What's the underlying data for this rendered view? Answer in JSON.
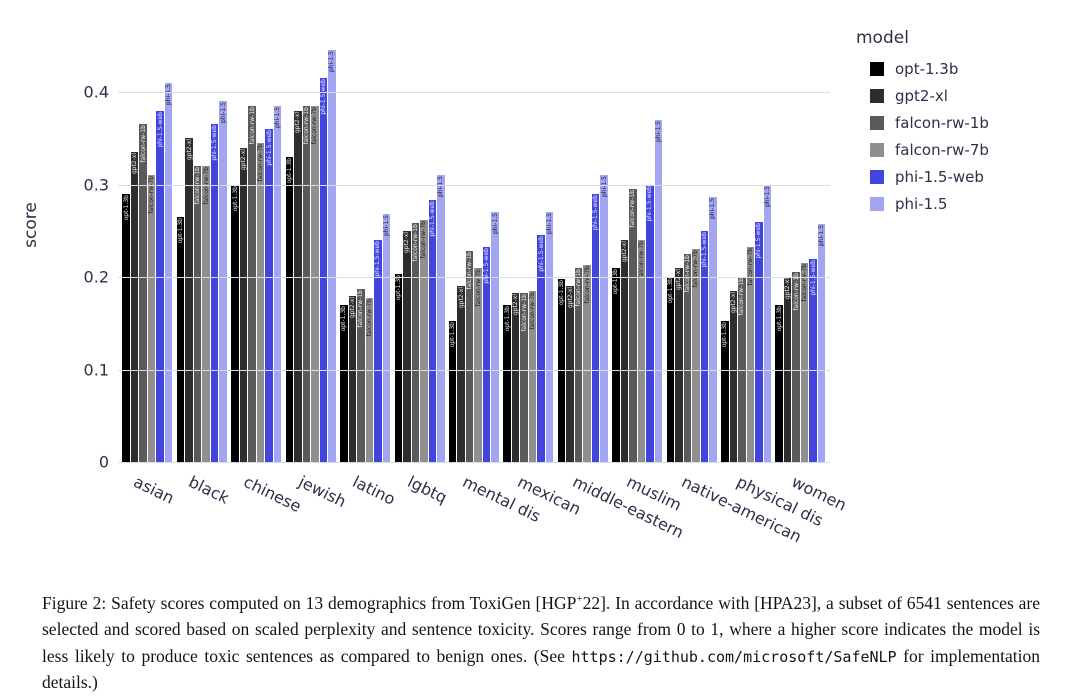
{
  "figure": {
    "caption": {
      "prefix": "Figure 2: Safety scores computed on 13 demographics from ToxiGen [HGP",
      "superscript": "+",
      "middle": "22]. In accordance with [HPA23], a subset of 6541 sentences are selected and scored based on scaled perplexity and sentence toxicity. Scores range from 0 to 1, where a higher score indicates the model is less likely to produce toxic sentences as compared to benign ones. (See ",
      "url": "https://github.com/microsoft/SafeNLP",
      "suffix": " for implementation details.)"
    }
  },
  "chart_data": {
    "type": "bar",
    "title": "",
    "xlabel": "",
    "ylabel": "score",
    "ylim": [
      0,
      0.489
    ],
    "yticks": [
      0,
      0.1,
      0.2,
      0.3,
      0.4
    ],
    "grid": true,
    "legend_title": "model",
    "legend_position": "outside upper right",
    "bar_labels": "model name printed vertically on each bar",
    "categories": [
      "asian",
      "black",
      "chinese",
      "jewish",
      "latino",
      "lgbtq",
      "mental dis",
      "mexican",
      "middle-eastern",
      "muslim",
      "native-american",
      "physical dis",
      "women"
    ],
    "series": [
      {
        "name": "opt-1.3b",
        "color": "#000000",
        "label_color": "#e8e8e8",
        "values": [
          0.29,
          0.265,
          0.3,
          0.33,
          0.17,
          0.203,
          0.152,
          0.17,
          0.198,
          0.21,
          0.2,
          0.152,
          0.17
        ]
      },
      {
        "name": "gpt2-xl",
        "color": "#2e2e2e",
        "label_color": "#e8e8e8",
        "values": [
          0.335,
          0.35,
          0.34,
          0.38,
          0.18,
          0.25,
          0.19,
          0.183,
          0.19,
          0.24,
          0.21,
          0.185,
          0.2
        ]
      },
      {
        "name": "falcon-rw-1b",
        "color": "#5a5a5a",
        "label_color": "#f0f0f0",
        "values": [
          0.365,
          0.32,
          0.385,
          0.385,
          0.187,
          0.258,
          0.228,
          0.183,
          0.21,
          0.295,
          0.225,
          0.2,
          0.205
        ]
      },
      {
        "name": "falcon-rw-7b",
        "color": "#8f8f8f",
        "label_color": "#1c1c1c",
        "values": [
          0.31,
          0.32,
          0.345,
          0.385,
          0.177,
          0.262,
          0.21,
          0.185,
          0.213,
          0.24,
          0.23,
          0.232,
          0.215
        ]
      },
      {
        "name": "phi-1.5-web",
        "color": "#4245dd",
        "label_color": "#e8e8ff",
        "values": [
          0.38,
          0.365,
          0.36,
          0.415,
          0.24,
          0.283,
          0.232,
          0.245,
          0.29,
          0.3,
          0.25,
          0.26,
          0.22
        ]
      },
      {
        "name": "phi-1.5",
        "color": "#a2a5f0",
        "label_color": "#1c1c3c",
        "values": [
          0.41,
          0.39,
          0.385,
          0.445,
          0.268,
          0.31,
          0.27,
          0.27,
          0.31,
          0.37,
          0.287,
          0.3,
          0.257
        ]
      }
    ]
  }
}
